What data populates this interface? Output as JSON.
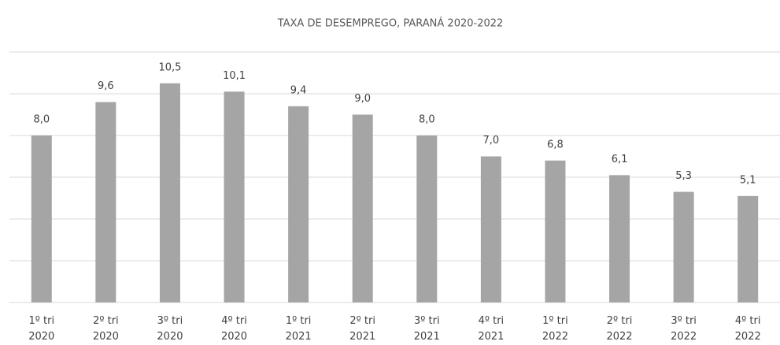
{
  "chart_data": {
    "type": "bar",
    "title": "TAXA DE DESEMPREGO, PARANÁ 2020-2022",
    "categories": [
      "1º tri 2020",
      "2º tri 2020",
      "3º tri 2020",
      "4º tri 2020",
      "1º tri 2021",
      "2º tri 2021",
      "3º tri 2021",
      "4º tri 2021",
      "1º tri 2022",
      "2º tri 2022",
      "3º tri 2022",
      "4º tri 2022"
    ],
    "values": [
      8.0,
      9.6,
      10.5,
      10.1,
      9.4,
      9.0,
      8.0,
      7.0,
      6.8,
      6.1,
      5.3,
      5.1
    ],
    "value_labels": [
      "8,0",
      "9,6",
      "10,5",
      "10,1",
      "9,4",
      "9,0",
      "8,0",
      "7,0",
      "6,8",
      "6,1",
      "5,3",
      "5,1"
    ],
    "color": "#a5a5a5",
    "ylim": [
      0,
      12
    ],
    "yticks": [
      0,
      2,
      4,
      6,
      8,
      10,
      12
    ],
    "grid": true
  }
}
